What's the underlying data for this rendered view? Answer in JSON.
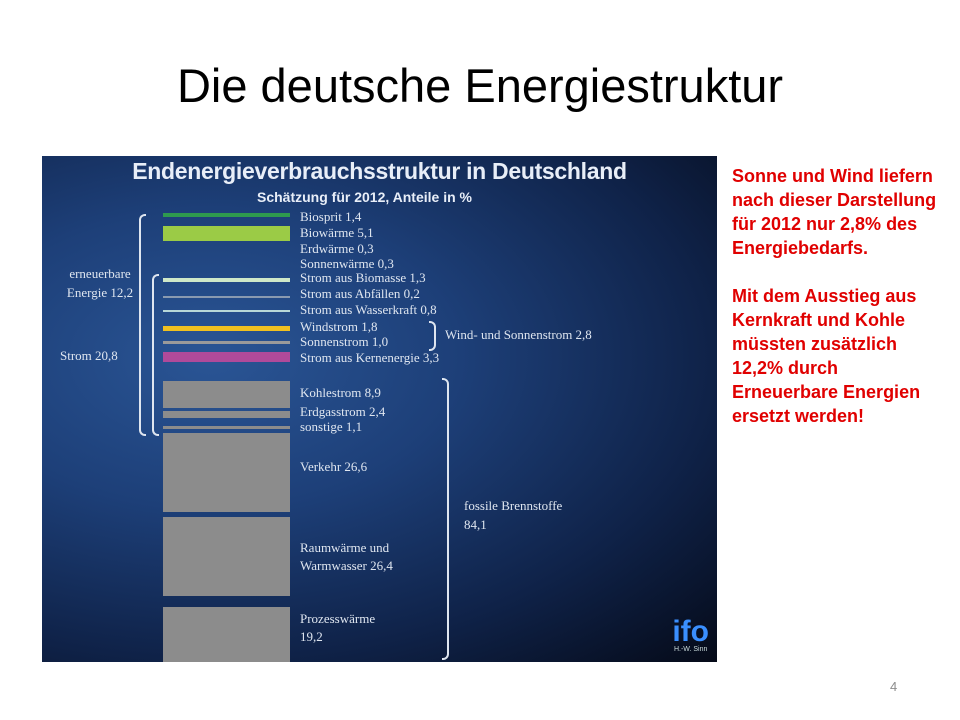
{
  "slide": {
    "title": "Die deutsche Energiestruktur",
    "page_number": "4",
    "notes": [
      "Sonne und Wind liefern nach dieser Darstellung für 2012 nur 2,8% des Energiebedarfs.",
      "Mit dem Ausstieg aus Kernkraft und Kohle müssten zusätzlich 12,2% durch Erneuerbare Energien ersetzt werden!"
    ],
    "notes_color": "#e00000"
  },
  "chart_data": {
    "type": "bar",
    "title": "Endenergieverbrauchsstruktur in Deutschland",
    "subtitle": "Schätzung für 2012, Anteile in %",
    "logo": "ifo",
    "logo_caption": "H.-W. Sinn",
    "items": [
      {
        "label": "Biosprit 1,4",
        "value": 1.4,
        "color": "#2e9a4e"
      },
      {
        "label": "Biowärme 5,1",
        "value": 5.1,
        "color": "#9bcb46"
      },
      {
        "label": "Erdwärme 0,3",
        "value": 0.3,
        "color": ""
      },
      {
        "label": "Sonnenwärme 0,3",
        "value": 0.3,
        "color": ""
      },
      {
        "label": "Strom aus Biomasse 1,3",
        "value": 1.3,
        "color": "#cfe8c8"
      },
      {
        "label": "Strom aus Abfällen 0,2",
        "value": 0.2,
        "color": "#8a9ab0"
      },
      {
        "label": "Strom aus Wasserkraft 0,8",
        "value": 0.8,
        "color": "#b8d8d8"
      },
      {
        "label": "Windstrom 1,8",
        "value": 1.8,
        "color": "#f0c020"
      },
      {
        "label": "Sonnenstrom 1,0",
        "value": 1.0,
        "color": "#9a9a9a"
      },
      {
        "label": "Strom aus Kernenergie 3,3",
        "value": 3.3,
        "color": "#b04a9a"
      },
      {
        "label": "Kohlestrom 8,9",
        "value": 8.9,
        "color": "#8c8c8c"
      },
      {
        "label": "Erdgasstrom 2,4",
        "value": 2.4,
        "color": "#8c8c8c"
      },
      {
        "label": "sonstige 1,1",
        "value": 1.1,
        "color": "#8c8c8c"
      },
      {
        "label": "Verkehr 26,6",
        "value": 26.6,
        "color": "#8c8c8c"
      },
      {
        "label": "Raumwärme und\nWarmwasser 26,4",
        "value": 26.4,
        "color": "#8c8c8c"
      },
      {
        "label": "Prozesswärme\n19,2",
        "value": 19.2,
        "color": "#8c8c8c"
      }
    ],
    "groups": [
      {
        "label": "erneuerbare Energie 12,2",
        "value": 12.2
      },
      {
        "label": "Strom 20,8",
        "value": 20.8
      },
      {
        "label": "Wind- und Sonnenstrom 2,8",
        "value": 2.8
      },
      {
        "label": "fossile Brennstoffe 84,1",
        "value": 84.1
      }
    ]
  }
}
